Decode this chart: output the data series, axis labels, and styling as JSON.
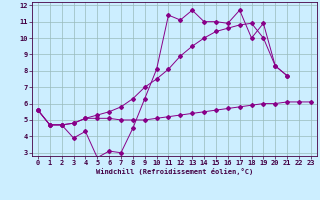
{
  "xlabel": "Windchill (Refroidissement éolien,°C)",
  "bg_color": "#cceeff",
  "line_color": "#880088",
  "grid_color": "#99bbbb",
  "xlim": [
    -0.5,
    23.5
  ],
  "ylim": [
    2.8,
    12.2
  ],
  "xticks": [
    0,
    1,
    2,
    3,
    4,
    5,
    6,
    7,
    8,
    9,
    10,
    11,
    12,
    13,
    14,
    15,
    16,
    17,
    18,
    19,
    20,
    21,
    22,
    23
  ],
  "yticks": [
    3,
    4,
    5,
    6,
    7,
    8,
    9,
    10,
    11,
    12
  ],
  "line1_x": [
    0,
    1,
    2,
    3,
    4,
    5,
    6,
    7,
    8,
    9,
    10,
    11,
    12,
    13,
    14,
    15,
    16,
    17,
    18,
    19,
    20,
    21
  ],
  "line1_y": [
    5.6,
    4.7,
    4.7,
    3.9,
    4.3,
    2.7,
    3.1,
    3.0,
    4.5,
    6.3,
    8.1,
    11.4,
    11.1,
    11.7,
    11.0,
    11.0,
    10.9,
    11.7,
    10.0,
    10.9,
    8.3,
    7.7
  ],
  "line2_x": [
    0,
    1,
    2,
    3,
    4,
    5,
    6,
    7,
    8,
    9,
    10,
    11,
    12,
    13,
    14,
    15,
    16,
    17,
    18,
    19,
    20,
    21,
    22,
    23
  ],
  "line2_y": [
    5.6,
    4.7,
    4.7,
    4.8,
    5.1,
    5.1,
    5.1,
    5.0,
    5.0,
    5.0,
    5.1,
    5.2,
    5.3,
    5.4,
    5.5,
    5.6,
    5.7,
    5.8,
    5.9,
    6.0,
    6.0,
    6.1,
    6.1,
    6.1
  ],
  "line3_x": [
    0,
    1,
    2,
    3,
    4,
    5,
    6,
    7,
    8,
    9,
    10,
    11,
    12,
    13,
    14,
    15,
    16,
    17,
    18,
    19,
    20,
    21,
    22,
    23
  ],
  "line3_y": [
    5.6,
    4.7,
    4.7,
    4.8,
    5.1,
    5.3,
    5.5,
    5.8,
    6.3,
    7.0,
    7.5,
    8.1,
    8.9,
    9.5,
    10.0,
    10.4,
    10.6,
    10.8,
    10.9,
    10.0,
    8.3,
    7.7,
    null,
    null
  ]
}
